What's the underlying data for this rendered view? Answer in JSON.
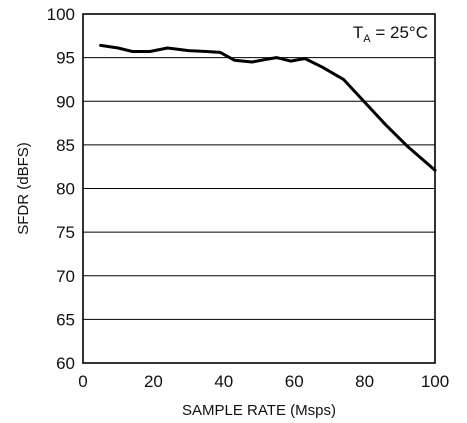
{
  "chart_data": {
    "type": "line",
    "title": "",
    "xlabel": "SAMPLE RATE (Msps)",
    "ylabel": "SFDR (dBFS)",
    "xlim": [
      0,
      100
    ],
    "ylim": [
      60,
      100
    ],
    "xticks": [
      0,
      20,
      40,
      60,
      80,
      100
    ],
    "yticks": [
      60,
      65,
      70,
      75,
      80,
      85,
      90,
      95,
      100
    ],
    "grid": "horizontal",
    "annotation": {
      "main": "T",
      "sub": "A",
      "rest": " = 25°C"
    },
    "series": [
      {
        "color": "#000000",
        "x": [
          5,
          10,
          14,
          19,
          24,
          30,
          35,
          39,
          43,
          48,
          52,
          55,
          59,
          63,
          68,
          74,
          80,
          86,
          92,
          100
        ],
        "y": [
          96.4,
          96.1,
          95.7,
          95.7,
          96.1,
          95.8,
          95.7,
          95.6,
          94.7,
          94.5,
          94.8,
          95.0,
          94.6,
          94.9,
          93.9,
          92.5,
          89.9,
          87.3,
          84.9,
          82.1
        ]
      }
    ]
  }
}
